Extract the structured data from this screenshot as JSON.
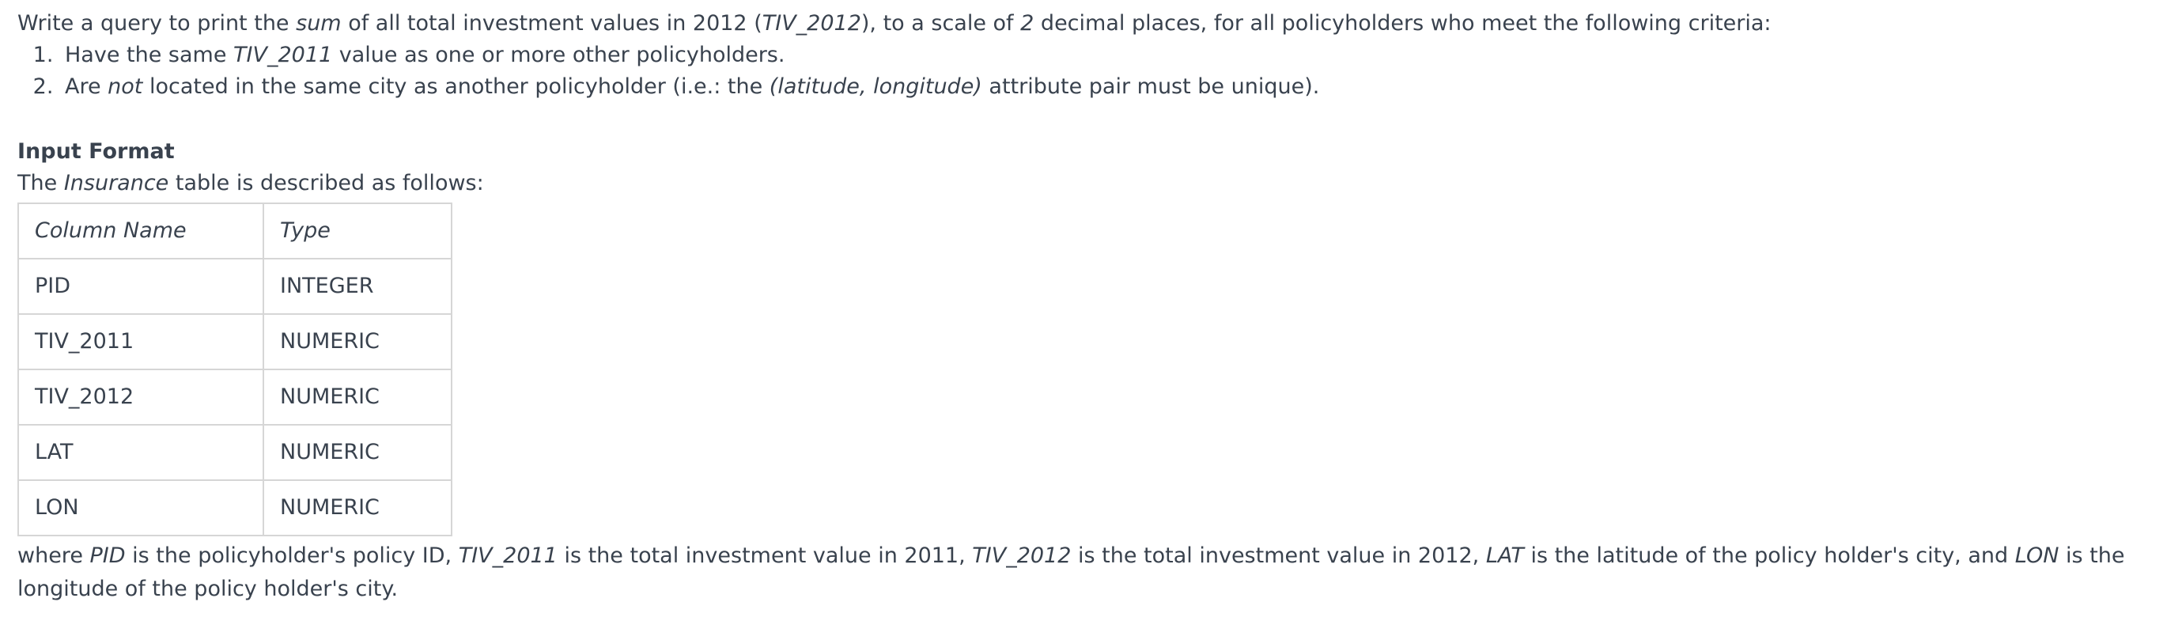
{
  "task": {
    "intro": {
      "t1": "Write a query to print the ",
      "i1": "sum",
      "t2": " of all total investment values in 2012 (",
      "i2": "TIV_2012",
      "t3": "), to a scale of ",
      "i3": "2",
      "t4": " decimal places, for all policyholders who meet the following criteria:"
    },
    "criteria": [
      {
        "t1": "Have the same ",
        "i1": "TIV_2011",
        "t2": " value as one or more other policyholders."
      },
      {
        "t1": "Are ",
        "i1": "not",
        "t2": " located in the same city as another policyholder (i.e.: the ",
        "i2": "(latitude, longitude)",
        "t3": " attribute pair must be unique)."
      }
    ]
  },
  "input_format": {
    "heading": "Input Format",
    "desc": {
      "t1": "The ",
      "i1": "Insurance",
      "t2": " table is described as follows:"
    },
    "table": {
      "headers": [
        "Column Name",
        "Type"
      ],
      "rows": [
        [
          "PID",
          "INTEGER"
        ],
        [
          "TIV_2011",
          "NUMERIC"
        ],
        [
          "TIV_2012",
          "NUMERIC"
        ],
        [
          "LAT",
          "NUMERIC"
        ],
        [
          "LON",
          "NUMERIC"
        ]
      ]
    },
    "where": {
      "t1": "where ",
      "i1": "PID",
      "t2": " is the policyholder's policy ID, ",
      "i2": "TIV_2011",
      "t3": " is the total investment value in 2011, ",
      "i3": "TIV_2012",
      "t4": " is the total investment value in 2012, ",
      "i4": "LAT",
      "t5": " is the latitude of the policy holder's city, and ",
      "i5": "LON",
      "t6": " is the longitude of the policy holder's city."
    }
  }
}
